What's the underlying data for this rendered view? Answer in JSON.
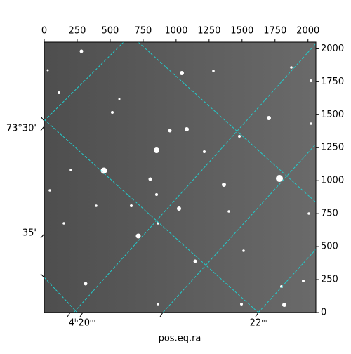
{
  "chart_data": {
    "type": "image",
    "x_label": "pos.eq.ra",
    "xlim": [
      0,
      2060
    ],
    "xticks": [
      0,
      250,
      500,
      750,
      1000,
      1250,
      1500,
      1750,
      2000
    ],
    "ylim": [
      0,
      2050
    ],
    "yticks": [
      0,
      250,
      500,
      750,
      1000,
      1250,
      1500,
      1750,
      2000
    ],
    "ra_ticks": [
      "4ʰ20ᵐ",
      "22ᵐ"
    ],
    "dec_ticks": [
      "73°30'",
      "35'"
    ],
    "grid_color": "#22cccc"
  }
}
